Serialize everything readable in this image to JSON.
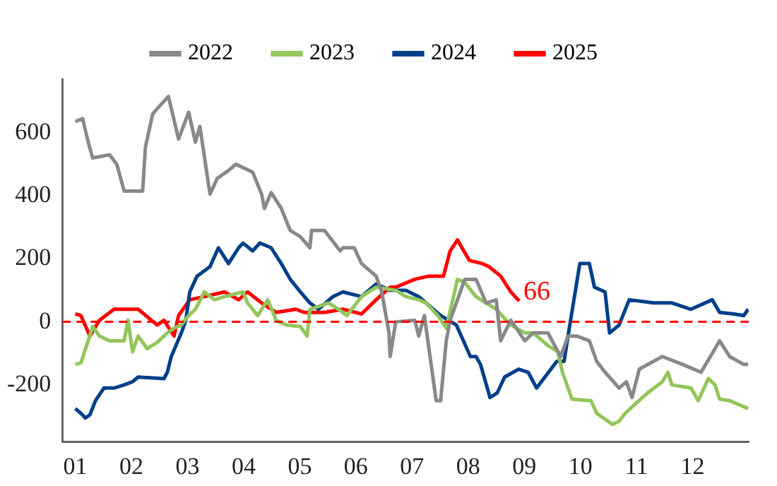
{
  "chart_data": {
    "type": "line",
    "xlim": [
      0.77,
      13.0
    ],
    "xticks": [
      {
        "value": 1,
        "label": "01"
      },
      {
        "value": 2,
        "label": "02"
      },
      {
        "value": 3,
        "label": "03"
      },
      {
        "value": 4,
        "label": "04"
      },
      {
        "value": 5,
        "label": "05"
      },
      {
        "value": 6,
        "label": "06"
      },
      {
        "value": 7,
        "label": "07"
      },
      {
        "value": 8,
        "label": "08"
      },
      {
        "value": 9,
        "label": "09"
      },
      {
        "value": 10,
        "label": "10"
      },
      {
        "value": 11,
        "label": "11"
      },
      {
        "value": 12,
        "label": "12"
      }
    ],
    "ylim": [
      -380,
      770
    ],
    "yticks": [
      -200,
      0,
      200,
      400,
      600
    ],
    "grid": false,
    "legend": "top",
    "marker": "none",
    "line_style": "solid",
    "series": [
      {
        "name": "2022",
        "color": "#898989",
        "x": [
          1.0,
          1.13,
          1.23,
          1.31,
          1.61,
          1.74,
          1.87,
          2.2,
          2.25,
          2.38,
          2.53,
          2.66,
          2.84,
          3.02,
          3.14,
          3.22,
          3.4,
          3.53,
          3.73,
          3.86,
          4.16,
          4.32,
          4.37,
          4.49,
          4.67,
          4.83,
          5.01,
          5.18,
          5.21,
          5.44,
          5.72,
          5.77,
          5.97,
          6.1,
          6.36,
          6.46,
          6.59,
          6.61,
          6.71,
          7.05,
          7.12,
          7.22,
          7.43,
          7.51,
          7.61,
          7.68,
          7.94,
          8.14,
          8.32,
          8.5,
          8.58,
          8.76,
          9.01,
          9.16,
          9.42,
          9.65,
          9.78,
          9.93,
          10.16,
          10.29,
          10.44,
          10.69,
          10.82,
          10.92,
          11.05,
          11.46,
          11.82,
          12.15,
          12.4,
          12.48,
          12.66,
          12.91,
          12.99
        ],
        "values": [
          635,
          645,
          570,
          520,
          530,
          500,
          415,
          415,
          555,
          660,
          690,
          715,
          580,
          665,
          570,
          620,
          405,
          455,
          480,
          500,
          475,
          405,
          360,
          410,
          360,
          290,
          270,
          235,
          290,
          290,
          225,
          235,
          235,
          185,
          145,
          95,
          -35,
          -110,
          0,
          5,
          -45,
          20,
          -250,
          -250,
          -60,
          5,
          135,
          135,
          60,
          70,
          -60,
          5,
          -60,
          -35,
          -35,
          -110,
          -45,
          -45,
          -60,
          -125,
          -160,
          -210,
          -190,
          -240,
          -150,
          -110,
          -135,
          -160,
          -85,
          -60,
          -110,
          -135,
          -135
        ]
      },
      {
        "name": "2023",
        "color": "#92c65a",
        "x": [
          1.0,
          1.1,
          1.23,
          1.31,
          1.43,
          1.61,
          1.87,
          1.94,
          2.02,
          2.12,
          2.28,
          2.46,
          2.64,
          2.76,
          2.89,
          3.02,
          3.14,
          3.3,
          3.48,
          3.66,
          3.99,
          4.07,
          4.25,
          4.43,
          4.58,
          4.76,
          5.01,
          5.13,
          5.18,
          5.51,
          5.69,
          5.84,
          6.1,
          6.36,
          6.71,
          6.89,
          7.12,
          7.25,
          7.46,
          7.61,
          7.81,
          7.94,
          8.14,
          8.5,
          8.76,
          9.01,
          9.16,
          9.42,
          9.6,
          9.68,
          9.85,
          10.19,
          10.29,
          10.57,
          10.69,
          10.8,
          10.95,
          11.2,
          11.46,
          11.56,
          11.63,
          11.97,
          12.1,
          12.28,
          12.4,
          12.48,
          12.66,
          12.99
        ],
        "values": [
          -135,
          -130,
          -60,
          -15,
          -45,
          -60,
          -60,
          5,
          -95,
          -45,
          -85,
          -65,
          -35,
          -20,
          -10,
          20,
          40,
          95,
          70,
          80,
          95,
          60,
          20,
          70,
          5,
          -10,
          -15,
          -45,
          40,
          60,
          40,
          20,
          80,
          110,
          100,
          80,
          70,
          60,
          20,
          -20,
          135,
          125,
          80,
          40,
          -10,
          -35,
          -35,
          -75,
          -95,
          -160,
          -245,
          -250,
          -290,
          -325,
          -315,
          -290,
          -265,
          -225,
          -190,
          -160,
          -200,
          -210,
          -250,
          -180,
          -200,
          -245,
          -250,
          -275
        ]
      },
      {
        "name": "2024",
        "color": "#003f8a",
        "x": [
          1.0,
          1.1,
          1.18,
          1.26,
          1.36,
          1.51,
          1.69,
          1.87,
          2.02,
          2.12,
          2.58,
          2.64,
          2.71,
          2.89,
          2.97,
          3.04,
          3.17,
          3.4,
          3.55,
          3.73,
          3.91,
          3.99,
          4.16,
          4.29,
          4.49,
          4.67,
          4.83,
          5.01,
          5.18,
          5.33,
          5.59,
          5.77,
          6.1,
          6.36,
          6.61,
          6.89,
          7.12,
          7.38,
          7.51,
          7.79,
          8.04,
          8.14,
          8.22,
          8.39,
          8.52,
          8.65,
          8.9,
          9.07,
          9.22,
          9.58,
          9.71,
          9.78,
          9.99,
          10.16,
          10.25,
          10.44,
          10.52,
          10.69,
          10.87,
          11.3,
          11.63,
          11.97,
          12.35,
          12.48,
          12.74,
          12.91,
          12.99
        ],
        "values": [
          -275,
          -290,
          -305,
          -295,
          -250,
          -210,
          -210,
          -200,
          -190,
          -175,
          -180,
          -160,
          -110,
          -35,
          5,
          95,
          145,
          175,
          235,
          185,
          235,
          250,
          225,
          250,
          235,
          185,
          135,
          95,
          60,
          40,
          80,
          95,
          80,
          120,
          100,
          100,
          80,
          40,
          20,
          -10,
          -110,
          -110,
          -135,
          -240,
          -225,
          -175,
          -150,
          -160,
          -210,
          -125,
          -125,
          -45,
          185,
          185,
          110,
          95,
          -35,
          -10,
          70,
          60,
          60,
          40,
          70,
          30,
          25,
          20,
          40
        ]
      },
      {
        "name": "2025",
        "color": "#ff0000",
        "x": [
          1.0,
          1.1,
          1.26,
          1.43,
          1.69,
          2.12,
          2.46,
          2.58,
          2.76,
          2.84,
          3.04,
          3.3,
          3.66,
          3.91,
          4.07,
          4.32,
          4.58,
          4.93,
          5.08,
          5.44,
          5.77,
          6.1,
          6.36,
          6.61,
          6.71,
          7.05,
          7.3,
          7.56,
          7.68,
          7.81,
          7.89,
          8.02,
          8.25,
          8.37,
          8.58,
          8.76,
          8.91
        ],
        "values": [
          25,
          20,
          -45,
          5,
          40,
          40,
          -10,
          5,
          -45,
          20,
          70,
          80,
          95,
          70,
          95,
          60,
          30,
          40,
          30,
          30,
          40,
          25,
          70,
          110,
          110,
          135,
          145,
          145,
          225,
          260,
          235,
          195,
          185,
          175,
          145,
          95,
          66
        ]
      }
    ],
    "ref_lines": [
      {
        "axis": "y",
        "value": 0,
        "color": "#ff0000",
        "line_style": "dashed"
      }
    ],
    "annotations": [
      {
        "text": "66",
        "x": 8.91,
        "y": 66
      }
    ]
  }
}
